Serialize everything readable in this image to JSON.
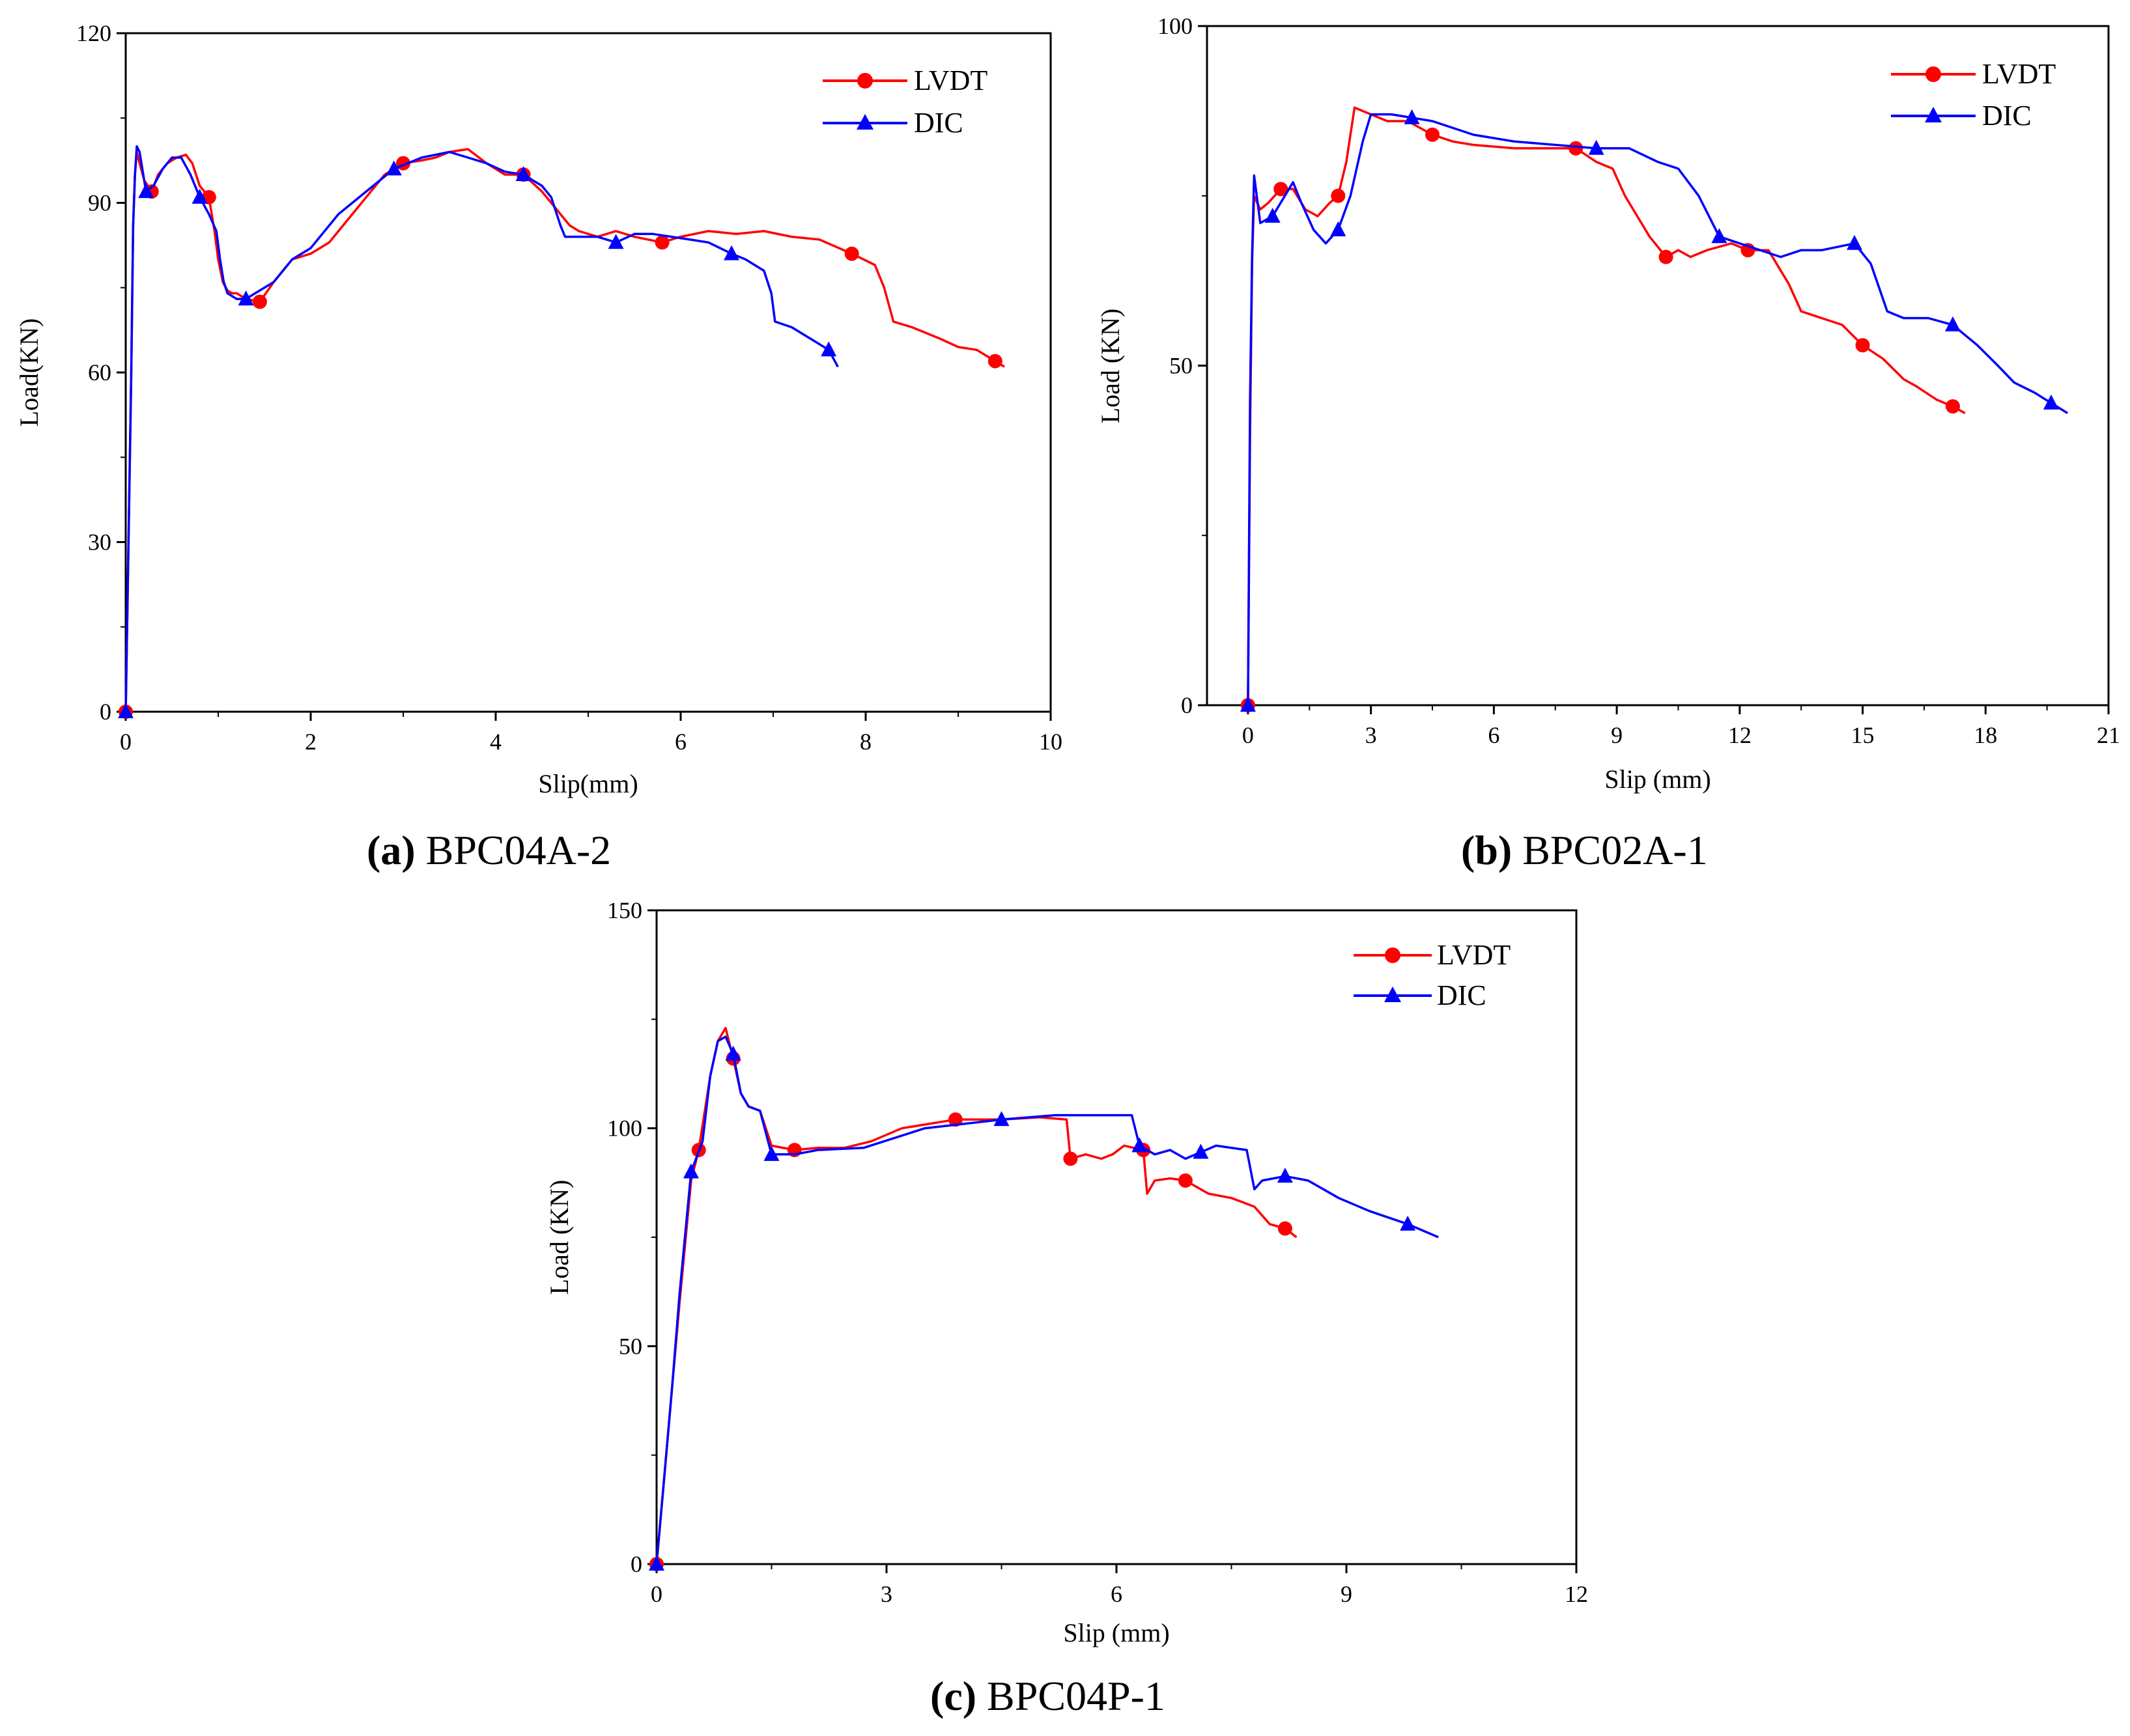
{
  "chart_data": [
    {
      "type": "line",
      "caption_letter": "a",
      "caption_text": "BPC04A-2",
      "xlabel": "Slip(mm)",
      "ylabel": "Load(KN)",
      "xlim": [
        0,
        10
      ],
      "ylim": [
        0,
        120
      ],
      "xticks": [
        "0",
        "2",
        "4",
        "6",
        "8",
        "10"
      ],
      "yticks": [
        "0",
        "30",
        "60",
        "90",
        "120"
      ],
      "legend_position": "top-right",
      "series": [
        {
          "name": "LVDT",
          "color": "#ff0000",
          "marker": "circle",
          "x": [
            0,
            0.03,
            0.06,
            0.08,
            0.1,
            0.12,
            0.15,
            0.2,
            0.28,
            0.35,
            0.45,
            0.55,
            0.65,
            0.72,
            0.8,
            0.9,
            0.96,
            1.0,
            1.05,
            1.1,
            1.15,
            1.2,
            1.3,
            1.45,
            1.6,
            1.8,
            2.0,
            2.2,
            2.45,
            2.6,
            2.8,
            3.0,
            3.2,
            3.35,
            3.5,
            3.7,
            3.9,
            4.1,
            4.3,
            4.5,
            4.7,
            4.8,
            4.9,
            5.1,
            5.3,
            5.5,
            5.8,
            6.0,
            6.3,
            6.6,
            6.9,
            7.2,
            7.5,
            7.85,
            8.1,
            8.2,
            8.3,
            8.5,
            8.8,
            9.0,
            9.2,
            9.4,
            9.5
          ],
          "y": [
            0,
            30,
            60,
            86,
            95,
            99,
            97,
            94,
            92,
            95,
            97,
            98,
            98.5,
            97,
            93,
            91,
            85,
            80,
            76,
            74.5,
            74,
            74,
            73,
            72.5,
            76,
            80,
            81,
            83,
            88,
            91,
            95,
            97,
            97.5,
            98,
            99,
            99.5,
            97,
            95,
            95,
            92,
            88,
            86,
            85,
            84,
            85,
            84,
            83,
            84,
            85,
            84.5,
            85,
            84,
            83.5,
            81,
            79,
            75,
            69,
            68,
            66,
            64.5,
            64,
            62,
            61
          ]
        },
        {
          "name": "DIC",
          "color": "#0000ff",
          "marker": "triangle",
          "x": [
            0,
            0.03,
            0.06,
            0.08,
            0.1,
            0.12,
            0.15,
            0.22,
            0.3,
            0.4,
            0.5,
            0.6,
            0.7,
            0.8,
            0.9,
            0.98,
            1.02,
            1.06,
            1.1,
            1.2,
            1.3,
            1.4,
            1.6,
            1.8,
            2.0,
            2.3,
            2.6,
            2.9,
            3.2,
            3.5,
            3.7,
            3.9,
            4.1,
            4.3,
            4.5,
            4.6,
            4.7,
            4.75,
            4.9,
            5.1,
            5.3,
            5.5,
            5.7,
            5.9,
            6.1,
            6.3,
            6.55,
            6.7,
            6.9,
            6.98,
            7.02,
            7.2,
            7.4,
            7.6,
            7.7
          ],
          "y": [
            0,
            30,
            60,
            86,
            95,
            100,
            99,
            92,
            93,
            96,
            98,
            98,
            95,
            91,
            88,
            85,
            80,
            76,
            74,
            73,
            73,
            74,
            76,
            80,
            82,
            88,
            92,
            96,
            98,
            99,
            98,
            97,
            95.5,
            95,
            93,
            91,
            86,
            84,
            84,
            84,
            83,
            84.5,
            84.5,
            84,
            83.5,
            83,
            81,
            80,
            78,
            74,
            69,
            68,
            66,
            64,
            61
          ]
        }
      ]
    },
    {
      "type": "line",
      "caption_letter": "b",
      "caption_text": "BPC02A-1",
      "xlabel": "Slip (mm)",
      "ylabel": "Load (KN)",
      "xlim": [
        -1,
        21
      ],
      "ylim": [
        0,
        100
      ],
      "xticks": [
        "0",
        "3",
        "6",
        "9",
        "12",
        "15",
        "18",
        "21"
      ],
      "yticks": [
        "0",
        "50",
        "100"
      ],
      "legend_position": "top-right",
      "series": [
        {
          "name": "LVDT",
          "color": "#ff0000",
          "marker": "circle",
          "x": [
            0,
            0.05,
            0.1,
            0.15,
            0.3,
            0.5,
            0.8,
            1.1,
            1.4,
            1.7,
            2.0,
            2.2,
            2.4,
            2.6,
            3.0,
            3.4,
            3.9,
            4.5,
            5.0,
            5.5,
            6.5,
            7.2,
            8.0,
            8.5,
            8.9,
            9.2,
            9.5,
            9.8,
            10.2,
            10.5,
            10.8,
            11.2,
            11.8,
            12.2,
            12.7,
            13.2,
            13.5,
            14.0,
            14.5,
            15.0,
            15.5,
            16.0,
            16.3,
            16.8,
            17.2,
            17.5
          ],
          "y": [
            0,
            40,
            65,
            75,
            73,
            74,
            76,
            76,
            73,
            72,
            74,
            75,
            80,
            88,
            87,
            86,
            86,
            84,
            83,
            82.5,
            82,
            82,
            82,
            80,
            79,
            75,
            72,
            69,
            66,
            67,
            66,
            67,
            68,
            67,
            67,
            62,
            58,
            57,
            56,
            53,
            51,
            48,
            47,
            45,
            44,
            43
          ]
        },
        {
          "name": "DIC",
          "color": "#0000ff",
          "marker": "triangle",
          "x": [
            0,
            0.05,
            0.1,
            0.15,
            0.3,
            0.6,
            0.9,
            1.1,
            1.3,
            1.6,
            1.9,
            2.2,
            2.5,
            2.8,
            3.0,
            3.5,
            4.0,
            4.5,
            5.5,
            6.5,
            7.5,
            8.5,
            9.3,
            10.0,
            10.5,
            11.0,
            11.5,
            12.0,
            12.5,
            13.0,
            13.5,
            14.0,
            14.8,
            15.2,
            15.6,
            16.0,
            16.6,
            17.2,
            17.8,
            18.3,
            18.7,
            19.2,
            19.6,
            20.0
          ],
          "y": [
            0,
            45,
            66,
            78,
            71,
            72,
            75,
            77,
            74,
            70,
            68,
            70,
            75,
            83,
            87,
            87,
            86.5,
            86,
            84,
            83,
            82.5,
            82,
            82,
            80,
            79,
            75,
            69,
            68,
            67,
            66,
            67,
            67,
            68,
            65,
            58,
            57,
            57,
            56,
            53,
            50,
            47.5,
            46,
            44.5,
            43
          ]
        }
      ]
    },
    {
      "type": "line",
      "caption_letter": "c",
      "caption_text": "BPC04P-1",
      "xlabel": "Slip (mm)",
      "ylabel": "Load (KN)",
      "xlim": [
        0,
        12
      ],
      "ylim": [
        0,
        150
      ],
      "xticks": [
        "0",
        "3",
        "6",
        "9",
        "12"
      ],
      "yticks": [
        "0",
        "50",
        "100",
        "150"
      ],
      "legend_position": "top-right",
      "series": [
        {
          "name": "LVDT",
          "color": "#ff0000",
          "marker": "circle",
          "x": [
            0,
            0.1,
            0.2,
            0.3,
            0.45,
            0.55,
            0.7,
            0.8,
            0.9,
            1.0,
            1.1,
            1.2,
            1.35,
            1.5,
            1.8,
            2.1,
            2.45,
            2.8,
            3.2,
            3.9,
            4.5,
            5.0,
            5.35,
            5.4,
            5.6,
            5.8,
            5.95,
            6.1,
            6.35,
            6.4,
            6.5,
            6.7,
            6.9,
            7.2,
            7.5,
            7.8,
            8.0,
            8.2,
            8.35
          ],
          "y": [
            0,
            20,
            40,
            60,
            88,
            95,
            112,
            120,
            123,
            116,
            108,
            105,
            104,
            96,
            95,
            95.5,
            95.5,
            97,
            100,
            102,
            102,
            102.5,
            102,
            93,
            94,
            93,
            94,
            96,
            95,
            85,
            88,
            88.5,
            88,
            85,
            84,
            82,
            78,
            77,
            75
          ]
        },
        {
          "name": "DIC",
          "color": "#0000ff",
          "marker": "triangle",
          "x": [
            0,
            0.1,
            0.2,
            0.3,
            0.45,
            0.6,
            0.7,
            0.8,
            0.9,
            1.0,
            1.1,
            1.2,
            1.35,
            1.5,
            1.8,
            2.1,
            2.7,
            3.5,
            4.5,
            5.2,
            5.7,
            6.2,
            6.3,
            6.5,
            6.7,
            6.9,
            7.1,
            7.3,
            7.7,
            7.8,
            7.9,
            8.2,
            8.5,
            8.9,
            9.3,
            9.8,
            10.2
          ],
          "y": [
            0,
            20,
            40,
            62,
            90,
            97,
            112,
            120,
            121,
            117,
            108,
            105,
            104,
            94,
            94,
            95,
            95.5,
            100,
            102,
            103,
            103,
            103,
            96,
            94,
            95,
            93,
            94.5,
            96,
            95,
            86,
            88,
            89,
            88,
            84,
            81,
            78,
            75
          ]
        }
      ]
    }
  ]
}
